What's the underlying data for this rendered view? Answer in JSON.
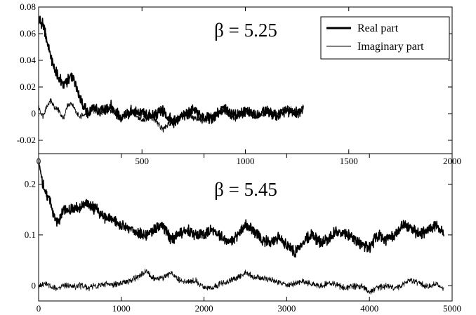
{
  "chart_data": [
    {
      "type": "line",
      "title": "β = 5.25",
      "xlabel": "",
      "ylabel": "",
      "xlim": [
        0,
        2000
      ],
      "ylim": [
        -0.03,
        0.08
      ],
      "xticks": [
        "0",
        "500",
        "1000",
        "1500",
        "2000"
      ],
      "xtick_values": [
        0,
        500,
        1000,
        1500,
        2000
      ],
      "yticks": [
        "-0.02",
        "0",
        "0.02",
        "0.04",
        "0.06",
        "0.08"
      ],
      "ytick_values": [
        -0.02,
        0,
        0.02,
        0.04,
        0.06,
        0.08
      ],
      "grid": false,
      "legend_position": "top-right",
      "series": [
        {
          "name": "Real part",
          "style": "thick",
          "color": "#000000",
          "x": [
            0,
            20,
            40,
            60,
            80,
            100,
            120,
            140,
            160,
            180,
            200,
            220,
            240,
            260,
            300,
            350,
            400,
            450,
            500,
            550,
            600,
            650,
            700,
            750,
            800,
            850,
            900,
            950,
            1000,
            1050,
            1100,
            1150,
            1200,
            1250,
            1280
          ],
          "y": [
            0.07,
            0.068,
            0.055,
            0.042,
            0.032,
            0.026,
            0.022,
            0.025,
            0.028,
            0.022,
            0.012,
            0.005,
            0.0,
            0.004,
            0.002,
            0.006,
            -0.004,
            0.002,
            0.0,
            -0.002,
            0.002,
            -0.006,
            -0.002,
            0.003,
            -0.004,
            -0.002,
            0.004,
            -0.002,
            0.002,
            -0.001,
            0.003,
            -0.002,
            0.002,
            0.001,
            0.004
          ]
        },
        {
          "name": "Imaginary part",
          "style": "thin",
          "color": "#000000",
          "x": [
            0,
            20,
            40,
            60,
            80,
            100,
            120,
            140,
            160,
            180,
            200,
            220,
            240,
            260,
            300,
            350,
            400,
            450,
            500,
            550,
            600,
            650,
            700,
            750,
            800,
            850,
            900,
            950,
            1000,
            1050,
            1100,
            1150,
            1200,
            1250,
            1280
          ],
          "y": [
            0.005,
            -0.002,
            0.006,
            0.01,
            0.004,
            0.002,
            -0.004,
            0.006,
            0.008,
            0.002,
            -0.003,
            0.0,
            -0.002,
            0.003,
            0.0,
            0.003,
            -0.003,
            0.001,
            -0.005,
            -0.002,
            -0.012,
            -0.006,
            0.0,
            -0.003,
            -0.005,
            0.0,
            0.002,
            -0.004,
            0.002,
            -0.003,
            0.001,
            0.0,
            0.004,
            0.001,
            0.005
          ]
        }
      ]
    },
    {
      "type": "line",
      "title": "β = 5.45",
      "xlabel": "",
      "ylabel": "",
      "xlim": [
        0,
        5000
      ],
      "ylim": [
        -0.03,
        0.26
      ],
      "xticks": [
        "0",
        "1000",
        "2000",
        "3000",
        "4000",
        "5000"
      ],
      "xtick_values": [
        0,
        1000,
        2000,
        3000,
        4000,
        5000
      ],
      "yticks": [
        "0",
        "0.1",
        "0.2"
      ],
      "ytick_values": [
        0,
        0.1,
        0.2
      ],
      "grid": false,
      "series": [
        {
          "name": "Real part",
          "style": "thick",
          "color": "#000000",
          "x": [
            0,
            50,
            100,
            150,
            200,
            250,
            300,
            400,
            500,
            600,
            700,
            800,
            900,
            1000,
            1100,
            1200,
            1300,
            1400,
            1500,
            1600,
            1700,
            1800,
            1900,
            2000,
            2100,
            2200,
            2300,
            2400,
            2500,
            2600,
            2700,
            2800,
            2900,
            3000,
            3100,
            3200,
            3300,
            3400,
            3500,
            3600,
            3700,
            3800,
            3900,
            4000,
            4100,
            4200,
            4300,
            4400,
            4500,
            4600,
            4700,
            4800,
            4900
          ],
          "y": [
            0.24,
            0.2,
            0.18,
            0.16,
            0.13,
            0.13,
            0.15,
            0.15,
            0.155,
            0.16,
            0.15,
            0.135,
            0.13,
            0.12,
            0.11,
            0.105,
            0.1,
            0.11,
            0.12,
            0.09,
            0.1,
            0.11,
            0.1,
            0.1,
            0.11,
            0.1,
            0.085,
            0.1,
            0.12,
            0.11,
            0.09,
            0.085,
            0.095,
            0.08,
            0.065,
            0.09,
            0.1,
            0.085,
            0.09,
            0.11,
            0.1,
            0.095,
            0.08,
            0.075,
            0.1,
            0.09,
            0.1,
            0.12,
            0.115,
            0.1,
            0.11,
            0.12,
            0.1
          ]
        },
        {
          "name": "Imaginary part",
          "style": "thin",
          "color": "#000000",
          "x": [
            0,
            50,
            100,
            150,
            200,
            250,
            300,
            400,
            500,
            600,
            700,
            800,
            900,
            1000,
            1100,
            1200,
            1300,
            1400,
            1500,
            1600,
            1700,
            1800,
            1900,
            2000,
            2100,
            2200,
            2300,
            2400,
            2500,
            2600,
            2700,
            2800,
            2900,
            3000,
            3100,
            3200,
            3300,
            3400,
            3500,
            3600,
            3700,
            3800,
            3900,
            4000,
            4100,
            4200,
            4300,
            4400,
            4500,
            4600,
            4700,
            4800,
            4900
          ],
          "y": [
            0.0,
            0.004,
            0.002,
            0.0,
            -0.004,
            -0.002,
            0.0,
            -0.002,
            0.0,
            -0.004,
            0.0,
            0.004,
            0.002,
            0.006,
            0.01,
            0.016,
            0.03,
            0.012,
            0.015,
            0.025,
            0.01,
            0.006,
            0.01,
            -0.003,
            -0.006,
            0.004,
            0.01,
            0.015,
            0.026,
            0.018,
            0.015,
            0.012,
            0.008,
            0.0,
            0.005,
            0.008,
            0.003,
            0.0,
            0.004,
            0.002,
            -0.005,
            -0.002,
            0.0,
            -0.012,
            -0.004,
            0.0,
            -0.005,
            0.0,
            0.012,
            0.005,
            -0.002,
            0.004,
            -0.008
          ]
        }
      ]
    }
  ]
}
